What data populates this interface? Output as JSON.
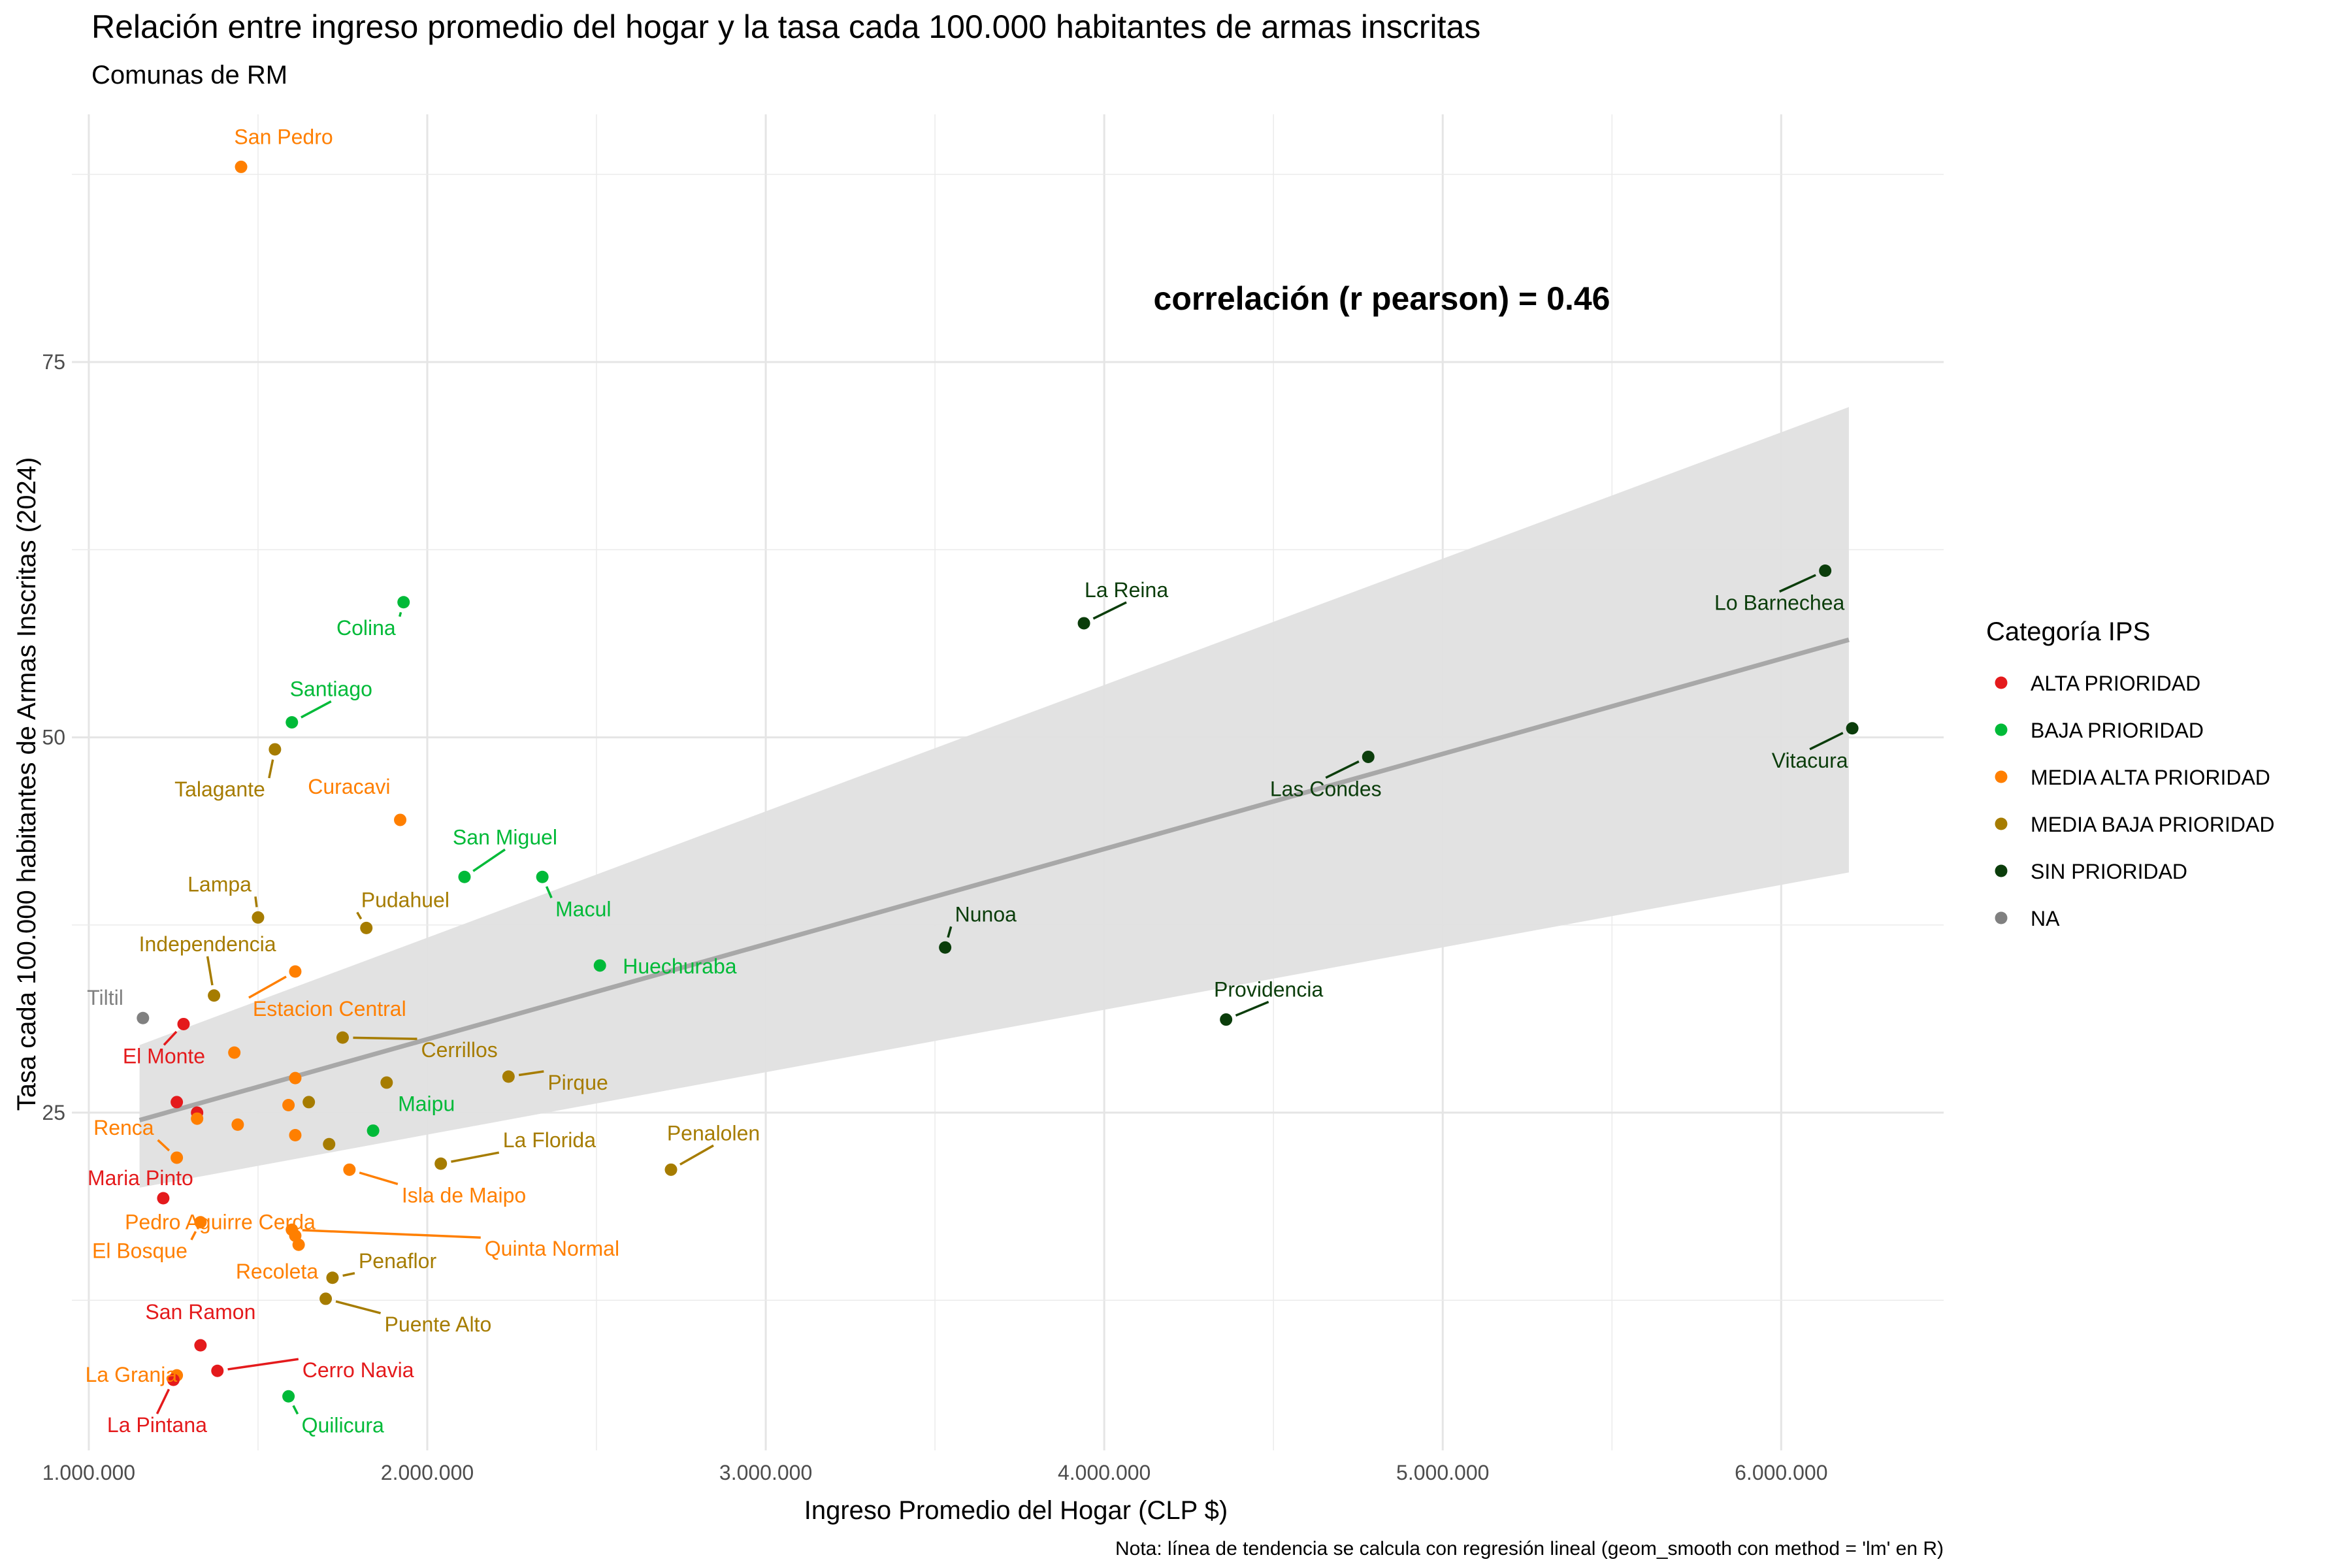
{
  "chart_data": {
    "type": "scatter",
    "title": "Relación entre ingreso promedio del hogar y la tasa cada 100.000 habitantes de armas inscritas",
    "subtitle": "Comunas de RM",
    "xlabel": "Ingreso Promedio del Hogar (CLP $)",
    "ylabel": "Tasa cada 100.000 habitantes de Armas Inscritas (2024)",
    "xlim": [
      950000,
      6480000
    ],
    "ylim": [
      2.5,
      91.5
    ],
    "x_ticks": [
      1000000,
      2000000,
      3000000,
      4000000,
      5000000,
      6000000
    ],
    "x_tick_labels": [
      "1.000.000",
      "2.000.000",
      "3.000.000",
      "4.000.000",
      "5.000.000",
      "6.000.000"
    ],
    "y_ticks": [
      25,
      50,
      75
    ],
    "y_tick_labels": [
      "25",
      "50",
      "75"
    ],
    "grid": true,
    "annotation": "correlación (r pearson) = 0.46",
    "caption": "Nota: línea de tendencia se calcula con regresión lineal (geom_smooth con method = 'lm' en R)",
    "legend": {
      "title": "Categoría IPS",
      "position": "right",
      "entries": [
        {
          "label": "ALTA PRIORIDAD",
          "color": "#E41A1C"
        },
        {
          "label": "BAJA PRIORIDAD",
          "color": "#00BA38"
        },
        {
          "label": "MEDIA ALTA PRIORIDAD",
          "color": "#FF7F00"
        },
        {
          "label": "MEDIA BAJA PRIORIDAD",
          "color": "#A67C00"
        },
        {
          "label": "SIN PRIORIDAD",
          "color": "#0B3D0B"
        },
        {
          "label": "NA",
          "color": "#808080"
        }
      ]
    },
    "trend": {
      "x": [
        1150000,
        6200000
      ],
      "y": [
        24.5,
        56.5
      ],
      "ci_lower": [
        20.0,
        41.0
      ],
      "ci_upper": [
        29.5,
        72.0
      ]
    },
    "points": [
      {
        "name": "San Pedro",
        "x": 1450000,
        "y": 88.0,
        "category": 2,
        "label": true
      },
      {
        "name": "Colina",
        "x": 1930000,
        "y": 59.0,
        "category": 1,
        "label": true
      },
      {
        "name": "Santiago",
        "x": 1600000,
        "y": 51.0,
        "category": 1,
        "label": true
      },
      {
        "name": "Talagante",
        "x": 1550000,
        "y": 49.2,
        "category": 3,
        "label": true
      },
      {
        "name": "Curacavi",
        "x": 1920000,
        "y": 44.5,
        "category": 2,
        "label": true
      },
      {
        "name": "San Miguel",
        "x": 2110000,
        "y": 40.7,
        "category": 1,
        "label": true
      },
      {
        "name": "Macul",
        "x": 2340000,
        "y": 40.7,
        "category": 1,
        "label": true
      },
      {
        "name": "Lampa",
        "x": 1500000,
        "y": 38.0,
        "category": 3,
        "label": true
      },
      {
        "name": "Pudahuel",
        "x": 1820000,
        "y": 37.3,
        "category": 3,
        "label": true
      },
      {
        "name": "Huechuraba",
        "x": 2510000,
        "y": 34.8,
        "category": 1,
        "label": true
      },
      {
        "name": "Estacion Central",
        "x": 1610000,
        "y": 34.4,
        "category": 2,
        "label": true
      },
      {
        "name": "Independencia",
        "x": 1370000,
        "y": 32.8,
        "category": 3,
        "label": true
      },
      {
        "name": "Tiltil",
        "x": 1160000,
        "y": 31.3,
        "category": 5,
        "label": true
      },
      {
        "name": "El Monte",
        "x": 1280000,
        "y": 30.9,
        "category": 0,
        "label": true
      },
      {
        "name": "Cerrillos",
        "x": 1750000,
        "y": 30.0,
        "category": 3,
        "label": true
      },
      {
        "name": "Pirque",
        "x": 2240000,
        "y": 27.4,
        "category": 3,
        "label": true
      },
      {
        "name": "Renca",
        "x": 1260000,
        "y": 22.0,
        "category": 2,
        "label": true
      },
      {
        "name": "Maipu",
        "x": 1840000,
        "y": 23.8,
        "category": 1,
        "label": true
      },
      {
        "name": "La Florida",
        "x": 2040000,
        "y": 21.6,
        "category": 3,
        "label": true
      },
      {
        "name": "Penalolen",
        "x": 2720000,
        "y": 21.2,
        "category": 3,
        "label": true
      },
      {
        "name": "Maria Pinto",
        "x": 1220000,
        "y": 19.3,
        "category": 0,
        "label": true
      },
      {
        "name": "Isla de Maipo",
        "x": 1770000,
        "y": 21.2,
        "category": 2,
        "label": true
      },
      {
        "name": "El Bosque",
        "x": 1330000,
        "y": 17.7,
        "category": 2,
        "label": true
      },
      {
        "name": "Quinta Normal",
        "x": 1600000,
        "y": 17.2,
        "category": 2,
        "label": true
      },
      {
        "name": "Pedro Aguirre Cerda",
        "x": 1610000,
        "y": 16.8,
        "category": 2,
        "label": true
      },
      {
        "name": "Recoleta",
        "x": 1620000,
        "y": 16.2,
        "category": 2,
        "label": true
      },
      {
        "name": "Penaflor",
        "x": 1720000,
        "y": 14.0,
        "category": 3,
        "label": true
      },
      {
        "name": "Puente Alto",
        "x": 1700000,
        "y": 12.6,
        "category": 3,
        "label": true
      },
      {
        "name": "San Ramon",
        "x": 1330000,
        "y": 9.5,
        "category": 0,
        "label": true
      },
      {
        "name": "Cerro Navia",
        "x": 1380000,
        "y": 7.8,
        "category": 0,
        "label": true
      },
      {
        "name": "La Granja",
        "x": 1260000,
        "y": 7.5,
        "category": 2,
        "label": true
      },
      {
        "name": "La Pintana",
        "x": 1250000,
        "y": 7.2,
        "category": 0,
        "label": true
      },
      {
        "name": "Quilicura",
        "x": 1590000,
        "y": 6.1,
        "category": 1,
        "label": true
      },
      {
        "name": "La Reina",
        "x": 3940000,
        "y": 57.6,
        "category": 4,
        "label": true
      },
      {
        "name": "Nunoa",
        "x": 3530000,
        "y": 36.0,
        "category": 4,
        "label": true
      },
      {
        "name": "Providencia",
        "x": 4360000,
        "y": 31.2,
        "category": 4,
        "label": true
      },
      {
        "name": "Las Condes",
        "x": 4780000,
        "y": 48.7,
        "category": 4,
        "label": true
      },
      {
        "name": "Lo Barnechea",
        "x": 6130000,
        "y": 61.1,
        "category": 4,
        "label": true
      },
      {
        "name": "Vitacura",
        "x": 6210000,
        "y": 50.6,
        "category": 4,
        "label": true
      },
      {
        "name": "",
        "x": 1260000,
        "y": 25.7,
        "category": 0,
        "label": false
      },
      {
        "name": "",
        "x": 1320000,
        "y": 25.0,
        "category": 0,
        "label": false
      },
      {
        "name": "",
        "x": 1320000,
        "y": 24.6,
        "category": 2,
        "label": false
      },
      {
        "name": "",
        "x": 1430000,
        "y": 29.0,
        "category": 2,
        "label": false
      },
      {
        "name": "",
        "x": 1440000,
        "y": 24.2,
        "category": 2,
        "label": false
      },
      {
        "name": "",
        "x": 1590000,
        "y": 25.5,
        "category": 2,
        "label": false
      },
      {
        "name": "",
        "x": 1610000,
        "y": 27.3,
        "category": 2,
        "label": false
      },
      {
        "name": "",
        "x": 1610000,
        "y": 23.5,
        "category": 2,
        "label": false
      },
      {
        "name": "",
        "x": 1650000,
        "y": 25.7,
        "category": 3,
        "label": false
      },
      {
        "name": "",
        "x": 1710000,
        "y": 22.9,
        "category": 3,
        "label": false
      },
      {
        "name": "",
        "x": 1880000,
        "y": 27.0,
        "category": 3,
        "label": false
      }
    ]
  }
}
